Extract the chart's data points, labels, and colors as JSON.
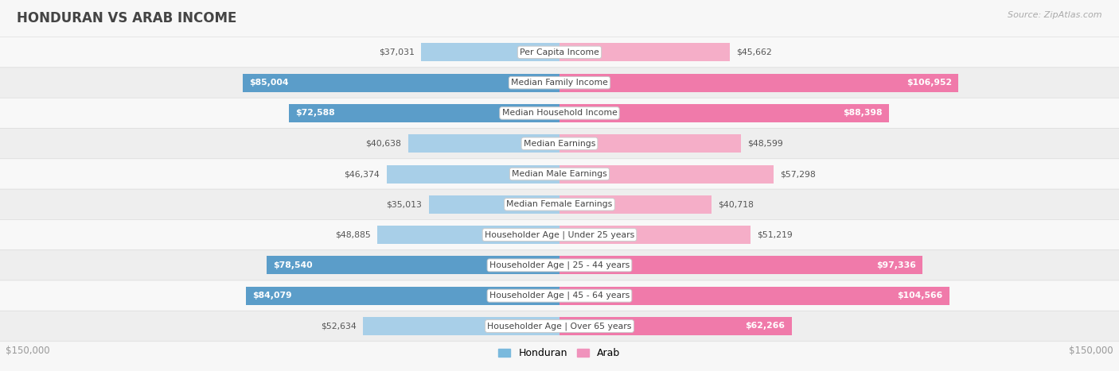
{
  "title": "HONDURAN VS ARAB INCOME",
  "source": "Source: ZipAtlas.com",
  "categories": [
    "Per Capita Income",
    "Median Family Income",
    "Median Household Income",
    "Median Earnings",
    "Median Male Earnings",
    "Median Female Earnings",
    "Householder Age | Under 25 years",
    "Householder Age | 25 - 44 years",
    "Householder Age | 45 - 64 years",
    "Householder Age | Over 65 years"
  ],
  "honduran_values": [
    37031,
    85004,
    72588,
    40638,
    46374,
    35013,
    48885,
    78540,
    84079,
    52634
  ],
  "arab_values": [
    45662,
    106952,
    88398,
    48599,
    57298,
    40718,
    51219,
    97336,
    104566,
    62266
  ],
  "honduran_labels": [
    "$37,031",
    "$85,004",
    "$72,588",
    "$40,638",
    "$46,374",
    "$35,013",
    "$48,885",
    "$78,540",
    "$84,079",
    "$52,634"
  ],
  "arab_labels": [
    "$45,662",
    "$106,952",
    "$88,398",
    "$48,599",
    "$57,298",
    "$40,718",
    "$51,219",
    "$97,336",
    "$104,566",
    "$62,266"
  ],
  "honduran_light_color": "#a8cfe8",
  "honduran_dark_color": "#5b9dc9",
  "arab_light_color": "#f5aec8",
  "arab_dark_color": "#f07aaa",
  "max_value": 150000,
  "title_color": "#444444",
  "label_dark_color": "#555555",
  "label_white_color": "#ffffff",
  "axis_label_color": "#999999",
  "row_colors": [
    "#f8f8f8",
    "#eeeeee"
  ],
  "source_color": "#aaaaaa",
  "legend_honduran_color": "#7ab9dd",
  "legend_arab_color": "#f093bc"
}
